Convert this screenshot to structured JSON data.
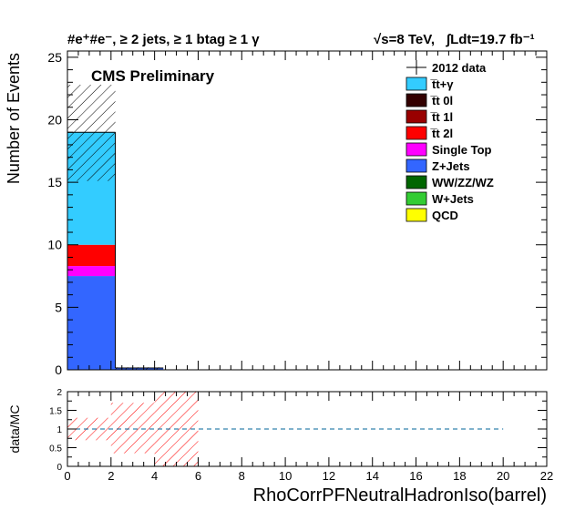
{
  "header": {
    "channel_label": "#e⁺#e⁻, ≥ 2 jets, ≥ 1 btag ≥ 1 γ",
    "energy_label": "√s=8 TeV,",
    "lumi_label": "∫Ldt=19.7 fb⁻¹"
  },
  "annotation": "CMS Preliminary",
  "colors": {
    "ttgamma": "#33ccff",
    "tt0l": "#330000",
    "tt1l": "#990000",
    "tt2l": "#ff0000",
    "single_top": "#ff00ff",
    "zjets": "#3366ff",
    "vv": "#006600",
    "wjets": "#33cc33",
    "qcd": "#ffff00",
    "hatch": "#000000",
    "ratio_hatch": "#ff0000",
    "ratio_line": "#006699"
  },
  "chart_data": [
    {
      "type": "bar",
      "stacked": true,
      "bin_edges": [
        0,
        2.2,
        4.4
      ],
      "xlim": [
        0,
        22
      ],
      "ylim": [
        0,
        25.5
      ],
      "ylabel": "Number of Events",
      "xlabel": "",
      "y_ticks": [
        0,
        5,
        10,
        15,
        20,
        25
      ],
      "x_ticks": [
        0,
        2,
        4,
        6,
        8,
        10,
        12,
        14,
        16,
        18,
        20,
        22
      ],
      "legend_position": "top-right",
      "legend": [
        {
          "label": "2012 data",
          "key": "data",
          "marker": "cross"
        },
        {
          "label": "t̅t+γ",
          "key": "ttgamma"
        },
        {
          "label": "t̅t 0l",
          "key": "tt0l"
        },
        {
          "label": "t̅t 1l",
          "key": "tt1l"
        },
        {
          "label": "t̅t 2l",
          "key": "tt2l"
        },
        {
          "label": "Single Top",
          "key": "single_top"
        },
        {
          "label": "Z+Jets",
          "key": "zjets"
        },
        {
          "label": "WW/ZZ/WZ",
          "key": "vv"
        },
        {
          "label": "W+Jets",
          "key": "wjets"
        },
        {
          "label": "QCD",
          "key": "qcd"
        }
      ],
      "series": [
        {
          "key": "zjets",
          "values": [
            7.5,
            0.15
          ]
        },
        {
          "key": "single_top",
          "values": [
            0.8,
            0.0
          ]
        },
        {
          "key": "tt2l",
          "values": [
            1.7,
            0.0
          ]
        },
        {
          "key": "ttgamma",
          "values": [
            9.0,
            0.0
          ]
        }
      ],
      "mc_total": [
        19.0,
        0.15
      ],
      "uncertainty_band": [
        {
          "low": 15.1,
          "high": 22.8
        },
        {
          "low": 0.0,
          "high": 0.2
        }
      ]
    },
    {
      "type": "line",
      "ylabel": "data/MC",
      "xlabel": "RhoCorrPFNeutralHadronIso(barrel)",
      "xlim": [
        0,
        22
      ],
      "ylim": [
        0,
        2
      ],
      "y_ticks": [
        0,
        0.5,
        1,
        1.5,
        2
      ],
      "y_tick_labels": [
        "0",
        "0.5",
        "1",
        "1.5",
        "2"
      ],
      "x_ticks": [
        0,
        2,
        4,
        6,
        8,
        10,
        12,
        14,
        16,
        18,
        20,
        22
      ],
      "reference_line": {
        "y": 1,
        "x": [
          0,
          20
        ]
      },
      "error_bands": [
        {
          "x": [
            0,
            2
          ],
          "low": 0.7,
          "high": 1.3
        },
        {
          "x": [
            2,
            4
          ],
          "low": 0.35,
          "high": 1.7
        },
        {
          "x": [
            4,
            6
          ],
          "low": 0.0,
          "high": 2.0
        }
      ]
    }
  ]
}
